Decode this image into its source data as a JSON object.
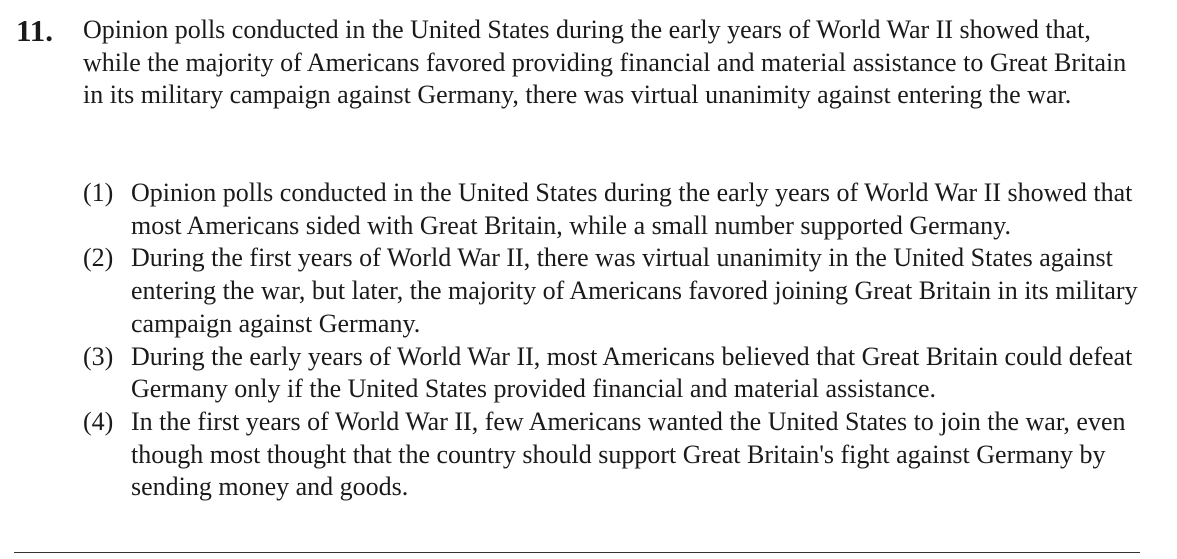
{
  "question": {
    "number": "11.",
    "stem": "Opinion polls conducted in the United States during the early years of World War II showed that, while the majority of Americans favored providing financial and material assistance to Great Britain in its military campaign against Germany, there was virtual unanimity against entering the war."
  },
  "options": [
    {
      "num": "(1)",
      "text": "Opinion polls conducted in the United States during the early years of World War II showed that most Americans sided with Great Britain, while a small number supported Germany."
    },
    {
      "num": "(2)",
      "text": "During the first years of World War II, there was virtual unanimity in the United States against entering the war, but later, the majority of Americans favored joining Great Britain in its military campaign against Germany."
    },
    {
      "num": "(3)",
      "text": "During the early years of World War II, most Americans believed that Great Britain could defeat Germany only if the United States provided financial and material assistance."
    },
    {
      "num": "(4)",
      "text": "In the first years of World War II, few Americans wanted the United States to join the war, even though most thought that the country should support Great Britain's fight against Germany by sending money and goods."
    }
  ]
}
